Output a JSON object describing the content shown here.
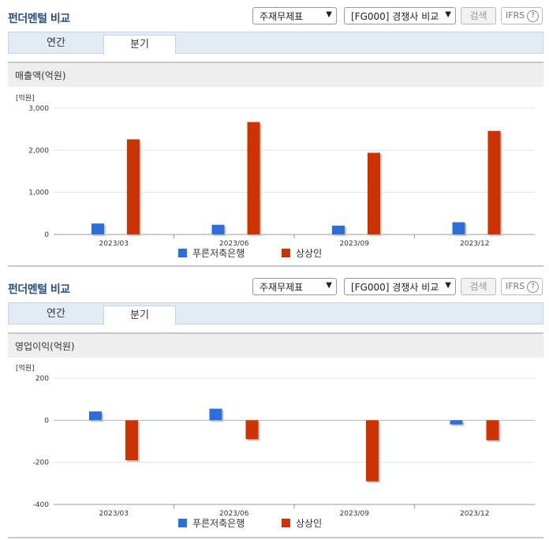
{
  "panels": [
    {
      "title": "펀더멘털 비교",
      "select1": "주재무제표",
      "select2": "[FG000] 경쟁사 비교",
      "search_label": "검색",
      "ifrs_label": "IFRS",
      "help_glyph": "?",
      "tabs": [
        "연간",
        "분기"
      ],
      "active_tab": "분기",
      "section_title": "매출액(억원)"
    },
    {
      "title": "펀더멘털 비교",
      "select1": "주재무제표",
      "select2": "[FG000] 경쟁사 비교",
      "search_label": "검색",
      "ifrs_label": "IFRS",
      "help_glyph": "?",
      "tabs": [
        "연간",
        "분기"
      ],
      "active_tab": "분기",
      "section_title": "영업이익(억원)"
    }
  ],
  "chart_data": [
    {
      "type": "bar",
      "unit_label": "[억원]",
      "categories": [
        "2023/03",
        "2023/06",
        "2023/09",
        "2023/12"
      ],
      "ylim": [
        0,
        3000
      ],
      "yticks": [
        0,
        1000,
        2000,
        3000
      ],
      "ytick_labels": [
        "0",
        "1,000",
        "2,000",
        "3,000"
      ],
      "grid": true,
      "legend_position": "bottom",
      "series": [
        {
          "name": "푸른저축은행",
          "color": "#2c6fdc",
          "values": [
            260,
            230,
            210,
            290
          ]
        },
        {
          "name": "상상인",
          "color": "#cc3300",
          "values": [
            2260,
            2670,
            1940,
            2460
          ]
        }
      ]
    },
    {
      "type": "bar",
      "unit_label": "[억원]",
      "categories": [
        "2023/03",
        "2023/06",
        "2023/09",
        "2023/12"
      ],
      "ylim": [
        -400,
        200
      ],
      "yticks": [
        -400,
        -200,
        0,
        200
      ],
      "ytick_labels": [
        "-400",
        "-200",
        "0",
        "200"
      ],
      "grid": true,
      "legend_position": "bottom",
      "series": [
        {
          "name": "푸른저축은행",
          "color": "#2c6fdc",
          "values": [
            42,
            55,
            0,
            -20
          ]
        },
        {
          "name": "상상인",
          "color": "#cc3300",
          "values": [
            -190,
            -90,
            -290,
            -95
          ]
        }
      ]
    }
  ]
}
